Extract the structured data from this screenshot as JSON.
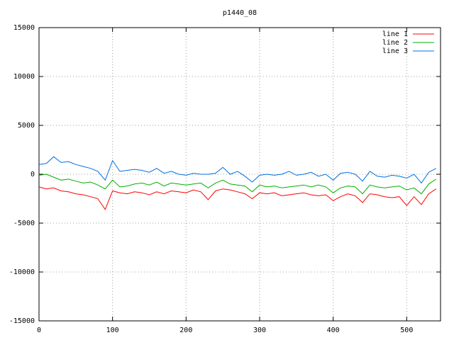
{
  "chart_data": {
    "type": "line",
    "title": "p1440_08",
    "x": [
      0,
      10,
      20,
      30,
      40,
      50,
      60,
      70,
      80,
      90,
      100,
      110,
      120,
      130,
      140,
      150,
      160,
      170,
      180,
      190,
      200,
      210,
      220,
      230,
      240,
      250,
      260,
      270,
      280,
      290,
      300,
      310,
      320,
      330,
      340,
      350,
      360,
      370,
      380,
      390,
      400,
      410,
      420,
      430,
      440,
      450,
      460,
      470,
      480,
      490,
      500,
      510,
      520,
      530,
      540
    ],
    "series": [
      {
        "name": "line 1",
        "color": "#ff0000",
        "values": [
          -1300,
          -1500,
          -1400,
          -1700,
          -1800,
          -2000,
          -2100,
          -2300,
          -2500,
          -3600,
          -1700,
          -1900,
          -2000,
          -1800,
          -1900,
          -2100,
          -1800,
          -2000,
          -1700,
          -1800,
          -1900,
          -1600,
          -1800,
          -2600,
          -1700,
          -1500,
          -1600,
          -1800,
          -2000,
          -2500,
          -1900,
          -2000,
          -1900,
          -2200,
          -2100,
          -2000,
          -1900,
          -2100,
          -2200,
          -2100,
          -2700,
          -2300,
          -2000,
          -2200,
          -2900,
          -2000,
          -2100,
          -2300,
          -2400,
          -2300,
          -3200,
          -2300,
          -3100,
          -2000,
          -1500
        ]
      },
      {
        "name": "line 2",
        "color": "#00b000",
        "values": [
          -100,
          0,
          -300,
          -600,
          -500,
          -700,
          -900,
          -800,
          -1100,
          -1500,
          -600,
          -1300,
          -1200,
          -1000,
          -900,
          -1100,
          -800,
          -1200,
          -900,
          -1000,
          -1100,
          -1000,
          -900,
          -1400,
          -900,
          -600,
          -1000,
          -1100,
          -1200,
          -1800,
          -1100,
          -1300,
          -1200,
          -1400,
          -1300,
          -1200,
          -1100,
          -1300,
          -1100,
          -1300,
          -1900,
          -1400,
          -1200,
          -1300,
          -2000,
          -1100,
          -1300,
          -1400,
          -1300,
          -1200,
          -1600,
          -1400,
          -2000,
          -1000,
          -500
        ]
      },
      {
        "name": "line 3",
        "color": "#0070e0",
        "values": [
          1000,
          1100,
          1800,
          1200,
          1300,
          1000,
          800,
          600,
          300,
          -600,
          1400,
          300,
          400,
          500,
          400,
          200,
          600,
          100,
          300,
          0,
          -100,
          100,
          0,
          0,
          100,
          700,
          0,
          300,
          -200,
          -800,
          -100,
          0,
          -100,
          0,
          300,
          -100,
          0,
          200,
          -200,
          0,
          -600,
          100,
          200,
          0,
          -700,
          300,
          -200,
          -300,
          -100,
          -200,
          -400,
          0,
          -900,
          200,
          600
        ]
      }
    ],
    "xlim": [
      0,
      546
    ],
    "xticks": [
      0,
      100,
      200,
      300,
      400,
      500
    ],
    "ylim": [
      -15000,
      15000
    ],
    "yticks": [
      -15000,
      -10000,
      -5000,
      0,
      5000,
      10000,
      15000
    ],
    "grid": true,
    "legend": "top-right"
  }
}
